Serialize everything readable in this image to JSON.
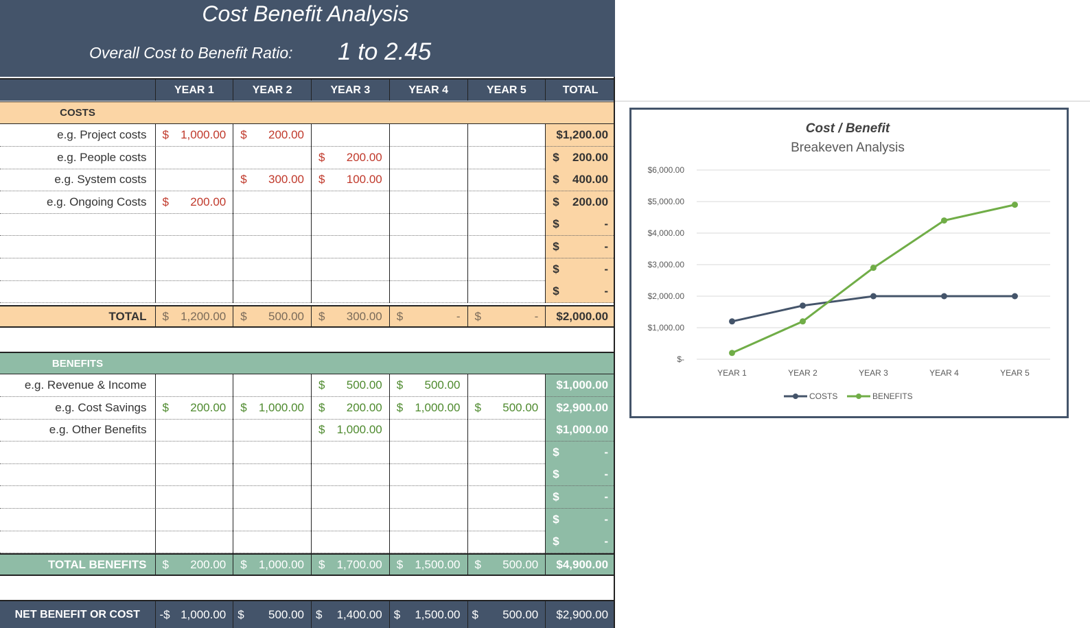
{
  "title": "Cost Benefit Analysis",
  "ratio_label": "Overall Cost to Benefit Ratio:",
  "ratio_value": "1 to 2.45",
  "headers": [
    "YEAR 1",
    "YEAR 2",
    "YEAR 3",
    "YEAR 4",
    "YEAR 5",
    "TOTAL"
  ],
  "costs": {
    "section_label": "COSTS",
    "rows": [
      {
        "label": "e.g. Project costs",
        "years": [
          [
            "$",
            "1,000.00"
          ],
          [
            "$",
            "200.00"
          ],
          [
            "",
            ""
          ],
          [
            "",
            ""
          ],
          [
            "",
            ""
          ]
        ],
        "total": [
          "$1,200.00",
          ""
        ]
      },
      {
        "label": "e.g. People costs",
        "years": [
          [
            "",
            ""
          ],
          [
            "",
            ""
          ],
          [
            "$",
            "200.00"
          ],
          [
            "",
            ""
          ],
          [
            "",
            ""
          ]
        ],
        "total": [
          "$",
          "200.00"
        ]
      },
      {
        "label": "e.g. System costs",
        "years": [
          [
            "",
            ""
          ],
          [
            "$",
            "300.00"
          ],
          [
            "$",
            "100.00"
          ],
          [
            "",
            ""
          ],
          [
            "",
            ""
          ]
        ],
        "total": [
          "$",
          "400.00"
        ]
      },
      {
        "label": "e.g. Ongoing Costs",
        "years": [
          [
            "$",
            "200.00"
          ],
          [
            "",
            ""
          ],
          [
            "",
            ""
          ],
          [
            "",
            ""
          ],
          [
            "",
            ""
          ]
        ],
        "total": [
          "$",
          "200.00"
        ]
      },
      {
        "label": "",
        "years": [
          [
            "",
            ""
          ],
          [
            "",
            ""
          ],
          [
            "",
            ""
          ],
          [
            "",
            ""
          ],
          [
            "",
            ""
          ]
        ],
        "total": [
          "$",
          "-"
        ]
      },
      {
        "label": "",
        "years": [
          [
            "",
            ""
          ],
          [
            "",
            ""
          ],
          [
            "",
            ""
          ],
          [
            "",
            ""
          ],
          [
            "",
            ""
          ]
        ],
        "total": [
          "$",
          "-"
        ]
      },
      {
        "label": "",
        "years": [
          [
            "",
            ""
          ],
          [
            "",
            ""
          ],
          [
            "",
            ""
          ],
          [
            "",
            ""
          ],
          [
            "",
            ""
          ]
        ],
        "total": [
          "$",
          "-"
        ]
      },
      {
        "label": "",
        "years": [
          [
            "",
            ""
          ],
          [
            "",
            ""
          ],
          [
            "",
            ""
          ],
          [
            "",
            ""
          ],
          [
            "",
            ""
          ]
        ],
        "total": [
          "$",
          "-"
        ]
      }
    ],
    "total_label": "TOTAL",
    "total_years": [
      [
        "$",
        "1,200.00"
      ],
      [
        "$",
        "500.00"
      ],
      [
        "$",
        "300.00"
      ],
      [
        "$",
        "-"
      ],
      [
        "$",
        "-"
      ]
    ],
    "total_total": "$2,000.00"
  },
  "benefits": {
    "section_label": "BENEFITS",
    "rows": [
      {
        "label": "e.g. Revenue & Income",
        "years": [
          [
            "",
            ""
          ],
          [
            "",
            ""
          ],
          [
            "$",
            "500.00"
          ],
          [
            "$",
            "500.00"
          ],
          [
            "",
            ""
          ]
        ],
        "total": [
          "$1,000.00",
          ""
        ]
      },
      {
        "label": "e.g. Cost Savings",
        "years": [
          [
            "$",
            "200.00"
          ],
          [
            "$",
            "1,000.00"
          ],
          [
            "$",
            "200.00"
          ],
          [
            "$",
            "1,000.00"
          ],
          [
            "$",
            "500.00"
          ]
        ],
        "total": [
          "$2,900.00",
          ""
        ]
      },
      {
        "label": "e.g. Other Benefits",
        "years": [
          [
            "",
            ""
          ],
          [
            "",
            ""
          ],
          [
            "$",
            "1,000.00"
          ],
          [
            "",
            ""
          ],
          [
            "",
            ""
          ]
        ],
        "total": [
          "$1,000.00",
          ""
        ]
      },
      {
        "label": "",
        "years": [
          [
            "",
            ""
          ],
          [
            "",
            ""
          ],
          [
            "",
            ""
          ],
          [
            "",
            ""
          ],
          [
            "",
            ""
          ]
        ],
        "total": [
          "$",
          "-"
        ]
      },
      {
        "label": "",
        "years": [
          [
            "",
            ""
          ],
          [
            "",
            ""
          ],
          [
            "",
            ""
          ],
          [
            "",
            ""
          ],
          [
            "",
            ""
          ]
        ],
        "total": [
          "$",
          "-"
        ]
      },
      {
        "label": "",
        "years": [
          [
            "",
            ""
          ],
          [
            "",
            ""
          ],
          [
            "",
            ""
          ],
          [
            "",
            ""
          ],
          [
            "",
            ""
          ]
        ],
        "total": [
          "$",
          "-"
        ]
      },
      {
        "label": "",
        "years": [
          [
            "",
            ""
          ],
          [
            "",
            ""
          ],
          [
            "",
            ""
          ],
          [
            "",
            ""
          ],
          [
            "",
            ""
          ]
        ],
        "total": [
          "$",
          "-"
        ]
      },
      {
        "label": "",
        "years": [
          [
            "",
            ""
          ],
          [
            "",
            ""
          ],
          [
            "",
            ""
          ],
          [
            "",
            ""
          ],
          [
            "",
            ""
          ]
        ],
        "total": [
          "$",
          "-"
        ]
      }
    ],
    "total_label": "TOTAL BENEFITS",
    "total_years": [
      [
        "$",
        "200.00"
      ],
      [
        "$",
        "1,000.00"
      ],
      [
        "$",
        "1,700.00"
      ],
      [
        "$",
        "1,500.00"
      ],
      [
        "$",
        "500.00"
      ]
    ],
    "total_total": "$4,900.00"
  },
  "net": {
    "label": "NET BENEFIT OR COST",
    "years": [
      [
        "-$",
        "1,000.00"
      ],
      [
        "$",
        "500.00"
      ],
      [
        "$",
        "1,400.00"
      ],
      [
        "$",
        "1,500.00"
      ],
      [
        "$",
        "500.00"
      ]
    ],
    "total": "$2,900.00"
  },
  "colors": {
    "header_dark": "#44546a",
    "costs_fill": "#fbd5a5",
    "benefits_fill": "#8fbca6",
    "cost_text": "#c0392b",
    "benefit_text": "#4e8a2e",
    "costs_series": "#44546a",
    "benefits_series": "#70ad47"
  },
  "chart_data": {
    "type": "line",
    "title": "Cost / Benefit",
    "subtitle": "Breakeven Analysis",
    "categories": [
      "YEAR 1",
      "YEAR 2",
      "YEAR 3",
      "YEAR 4",
      "YEAR 5"
    ],
    "series": [
      {
        "name": "COSTS",
        "values": [
          1200,
          1700,
          2000,
          2000,
          2000
        ],
        "color": "#44546a"
      },
      {
        "name": "BENEFITS",
        "values": [
          200,
          1200,
          2900,
          4400,
          4900
        ],
        "color": "#70ad47"
      }
    ],
    "yticks": [
      "$-",
      "$1,000.00",
      "$2,000.00",
      "$3,000.00",
      "$4,000.00",
      "$5,000.00",
      "$6,000.00"
    ],
    "ylim": [
      0,
      6000
    ],
    "grid": true,
    "legend": "bottom"
  }
}
